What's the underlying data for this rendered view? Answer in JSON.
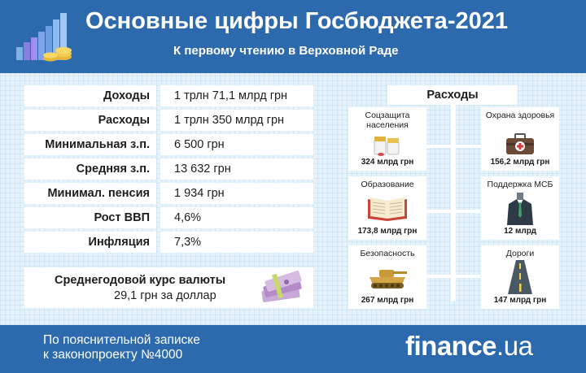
{
  "header": {
    "title": "Основные цифры Госбюджета-2021",
    "subtitle": "К первому чтению в Верховной Раде"
  },
  "summary": {
    "rows": [
      {
        "label": "Доходы",
        "value": "1 трлн 71,1 млрд грн"
      },
      {
        "label": "Расходы",
        "value": "1 трлн 350 млрд грн"
      },
      {
        "label": "Минимальная з.п.",
        "value": "6 500 грн"
      },
      {
        "label": "Средняя з.п.",
        "value": "13 632 грн"
      },
      {
        "label": "Минимал. пенсия",
        "value": "1 934 грн"
      },
      {
        "label": "Рост ВВП",
        "value": "4,6%"
      },
      {
        "label": "Инфляция",
        "value": "7,3%"
      }
    ]
  },
  "currency": {
    "title": "Среднегодовой курс валюты",
    "value": "29,1 грн за доллар",
    "icon": "money-stack-icon"
  },
  "expenses": {
    "heading": "Расходы",
    "items": [
      {
        "title": "Соцзащита населения",
        "value": "324 млрд грн",
        "icon": "pills-icon"
      },
      {
        "title": "Охрана здоровья",
        "value": "156,2 млрд грн",
        "icon": "first-aid-kit-icon"
      },
      {
        "title": "Образование",
        "value": "173,8 млрд грн",
        "icon": "open-book-icon"
      },
      {
        "title": "Поддержка МСБ",
        "value": "12 млрд",
        "icon": "businessman-icon"
      },
      {
        "title": "Безопасность",
        "value": "267 млрд грн",
        "icon": "tank-icon"
      },
      {
        "title": "Дороги",
        "value": "147 млрд грн",
        "icon": "road-icon"
      }
    ]
  },
  "footer": {
    "note_line1": "По пояснительной записке",
    "note_line2": "к законопроекту №4000",
    "brand_name": "finance",
    "brand_suffix": ".ua"
  },
  "colors": {
    "header_bg": "#2d6aad",
    "panel_bg": "#ffffff",
    "background": "#e7f2fa"
  }
}
